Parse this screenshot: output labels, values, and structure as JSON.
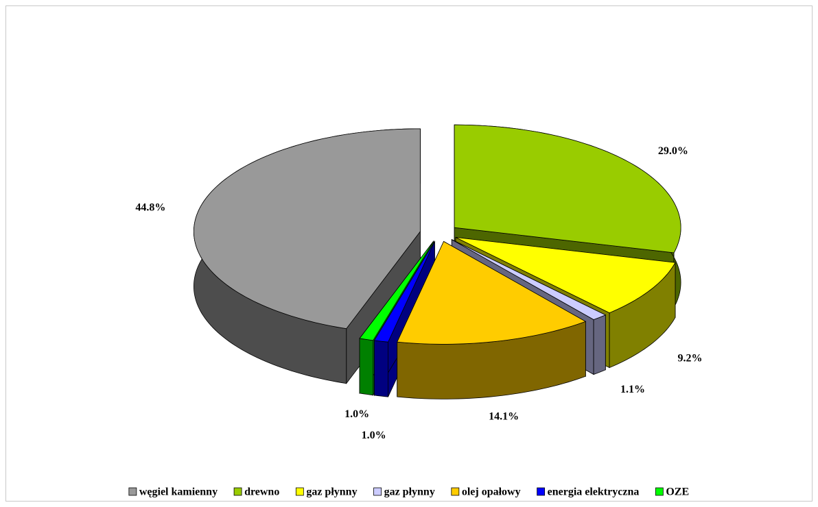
{
  "chart_data": {
    "type": "pie",
    "categories": [
      "węgiel kamienny",
      "drewno",
      "gaz płynny",
      "gaz płynny",
      "olej opałowy",
      "energia elektryczna",
      "OZE"
    ],
    "values": [
      44.8,
      29.0,
      9.2,
      1.1,
      14.1,
      1.0,
      1.0
    ],
    "value_labels": [
      "44.8%",
      "29.0%",
      "9.2%",
      "1.1%",
      "14.1%",
      "1.0%",
      "1.0%"
    ],
    "colors": [
      "#999999",
      "#99cc00",
      "#ffff00",
      "#ccccff",
      "#ffcc00",
      "#0000ff",
      "#00ff00"
    ],
    "legend": "bottom"
  }
}
